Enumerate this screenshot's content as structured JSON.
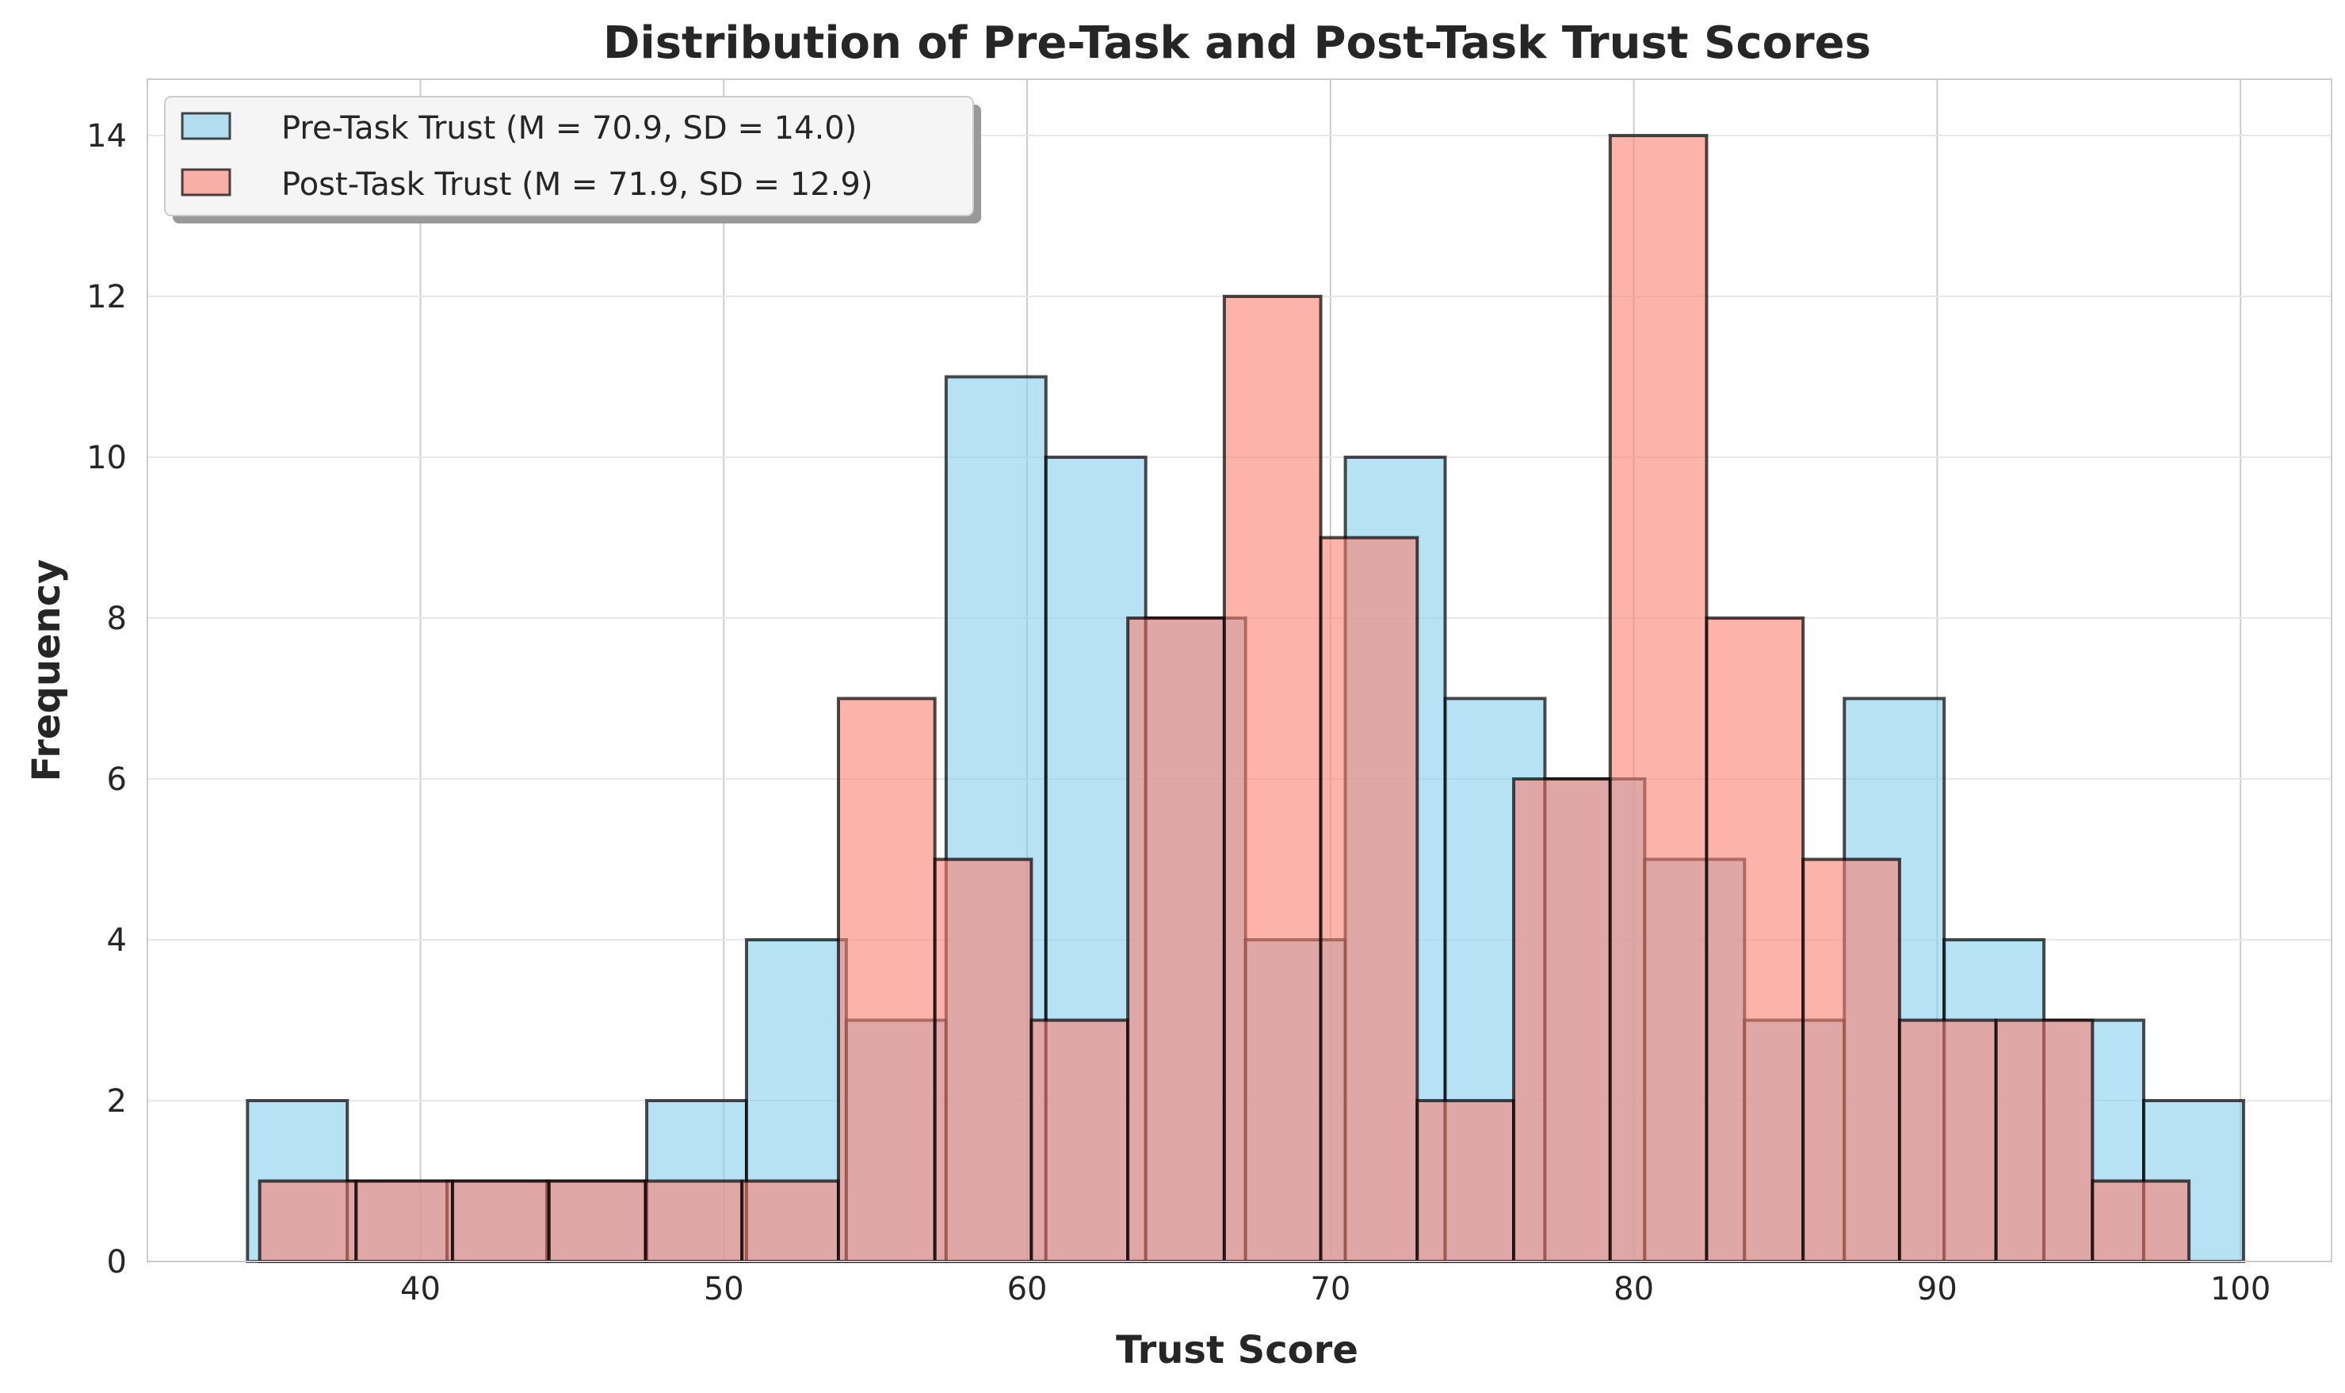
{
  "chart_data": {
    "type": "bar",
    "subtype": "histogram",
    "title": "Distribution of Pre-Task and Post-Task Trust Scores",
    "xlabel": "Trust Score",
    "ylabel": "Frequency",
    "xlim": [
      31,
      103
    ],
    "ylim": [
      0,
      14.7
    ],
    "xticks": [
      40,
      50,
      60,
      70,
      80,
      90,
      100
    ],
    "yticks": [
      0,
      2,
      4,
      6,
      8,
      10,
      12,
      14
    ],
    "grid": true,
    "legend_position": "top-left",
    "series": [
      {
        "name": "Pre-Task Trust (M = 70.9, SD = 14.0)",
        "color": "#87ceeb",
        "bin_edges": [
          34.3,
          37.59,
          40.88,
          44.17,
          47.46,
          50.75,
          54.04,
          57.33,
          60.62,
          63.91,
          67.2,
          70.49,
          73.78,
          77.07,
          80.36,
          83.65,
          86.94,
          90.23,
          93.52,
          96.81,
          100.1
        ],
        "counts": [
          2,
          1,
          1,
          1,
          2,
          4,
          3,
          11,
          10,
          8,
          4,
          10,
          7,
          6,
          5,
          3,
          7,
          4,
          3,
          2
        ]
      },
      {
        "name": "Post-Task Trust (M = 71.9, SD = 12.9)",
        "color": "#fa8072",
        "bin_edges": [
          34.7,
          37.88,
          41.06,
          44.24,
          47.42,
          50.6,
          53.78,
          56.96,
          60.14,
          63.32,
          66.5,
          69.68,
          72.86,
          76.04,
          79.22,
          82.4,
          85.58,
          88.76,
          91.94,
          95.12,
          98.3
        ],
        "counts": [
          1,
          1,
          1,
          1,
          1,
          1,
          7,
          5,
          3,
          8,
          12,
          9,
          2,
          6,
          14,
          8,
          5,
          3,
          3,
          1
        ]
      }
    ]
  },
  "colors": {
    "pre": "#87ceeb",
    "post": "#fa8072",
    "edge": "#000000",
    "grid": "#e5e5e5",
    "spine": "#cccccc",
    "text": "#262626"
  }
}
